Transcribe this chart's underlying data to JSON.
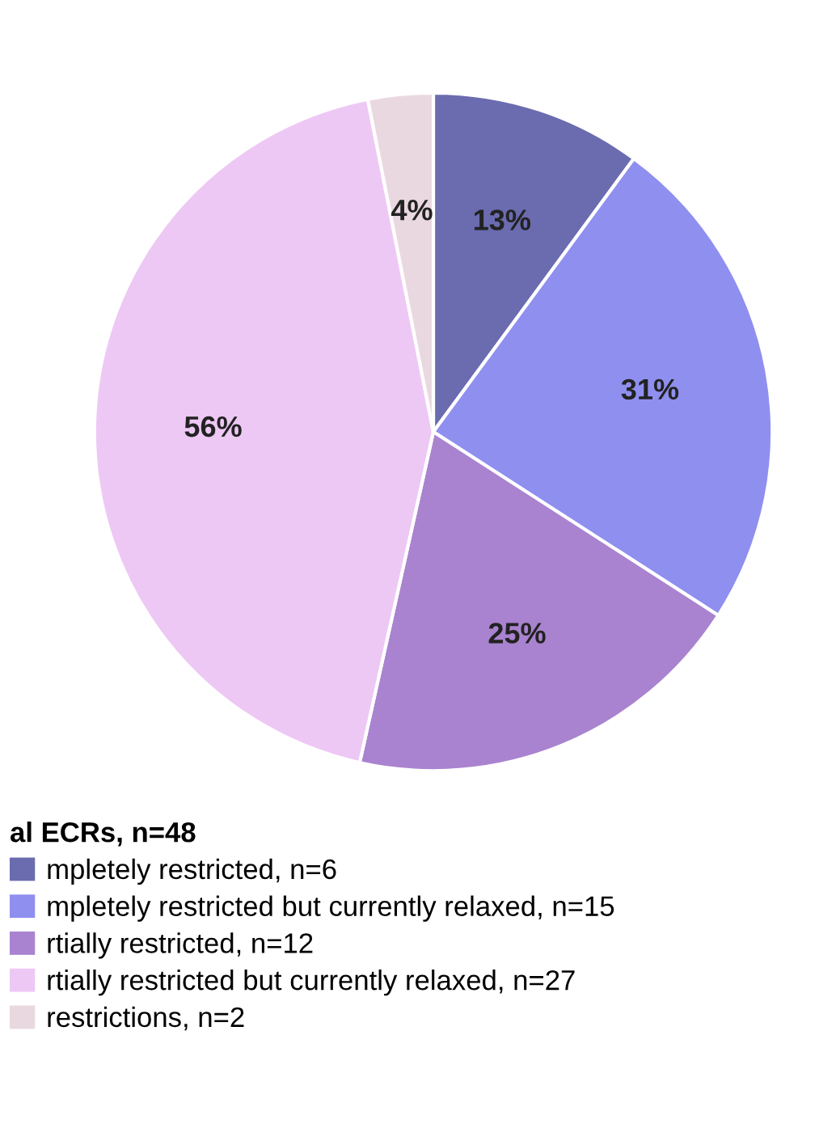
{
  "chart_data": {
    "type": "pie",
    "categories": [
      "mpletely restricted, n=6",
      "mpletely restricted but currently relaxed, n=15",
      "rtially restricted, n=12",
      "rtially restricted but currently relaxed, n=27",
      "restrictions, n=2"
    ],
    "values": [
      13,
      31,
      25,
      56,
      4
    ],
    "value_labels": [
      "13%",
      "31%",
      "25%",
      "56%",
      "4%"
    ],
    "colors": [
      "#6b6bb0",
      "#8f8ff0",
      "#a983cf",
      "#eec8f5",
      "#ead8e0"
    ],
    "legend_title": "al ECRs, n=48",
    "legend": "bottom"
  }
}
